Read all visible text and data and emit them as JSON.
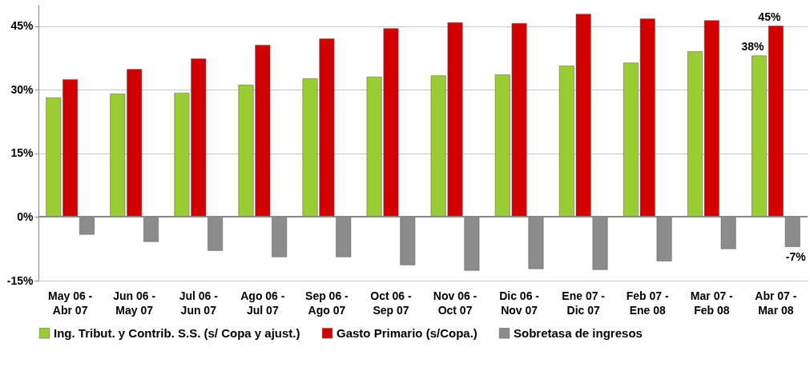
{
  "chart_data": {
    "type": "bar",
    "categories": [
      "May 06 - Abr 07",
      "Jun 06 - May 07",
      "Jul 06 - Jun 07",
      "Ago 06 - Jul 07",
      "Sep 06 - Ago 07",
      "Oct 06 - Sep 07",
      "Nov 06 - Oct 07",
      "Dic 06 - Nov 07",
      "Ene 07 - Dic 07",
      "Feb 07 - Ene 08",
      "Mar 07 - Feb 08",
      "Abr 07 - Mar 08"
    ],
    "series": [
      {
        "name": "Ing. Tribut. y Contrib. S.S. (s/ Copa y ajust.)",
        "color": "#9acd32",
        "values": [
          28.1,
          29.0,
          29.2,
          31.1,
          32.6,
          33.0,
          33.3,
          33.5,
          35.6,
          36.3,
          39.0,
          38
        ],
        "value_labels": [
          null,
          null,
          null,
          null,
          null,
          null,
          null,
          null,
          null,
          null,
          null,
          "38%"
        ]
      },
      {
        "name": "Gasto Primario (s/Copa.)",
        "color": "#d40000",
        "values": [
          32.4,
          34.8,
          37.3,
          40.5,
          42.0,
          44.4,
          45.8,
          45.6,
          47.8,
          46.7,
          46.3,
          45
        ],
        "value_labels": [
          null,
          null,
          null,
          null,
          null,
          null,
          null,
          null,
          null,
          null,
          null,
          "45%"
        ]
      },
      {
        "name": "Sobretasa de ingresos",
        "color": "#8c8c8c",
        "values": [
          -4.1,
          -5.8,
          -7.9,
          -9.4,
          -9.4,
          -11.3,
          -12.6,
          -12.2,
          -12.4,
          -10.4,
          -7.5,
          -7
        ],
        "value_labels": [
          null,
          null,
          null,
          null,
          null,
          null,
          null,
          null,
          null,
          null,
          null,
          "-7%"
        ]
      }
    ],
    "ylim": [
      -15,
      50
    ],
    "yticks": [
      {
        "value": -15,
        "label": "-15%"
      },
      {
        "value": 0,
        "label": "0%"
      },
      {
        "value": 15,
        "label": "15%"
      },
      {
        "value": 30,
        "label": "30%"
      },
      {
        "value": 45,
        "label": "45%"
      }
    ],
    "grid": "y",
    "legend": "bottom"
  }
}
